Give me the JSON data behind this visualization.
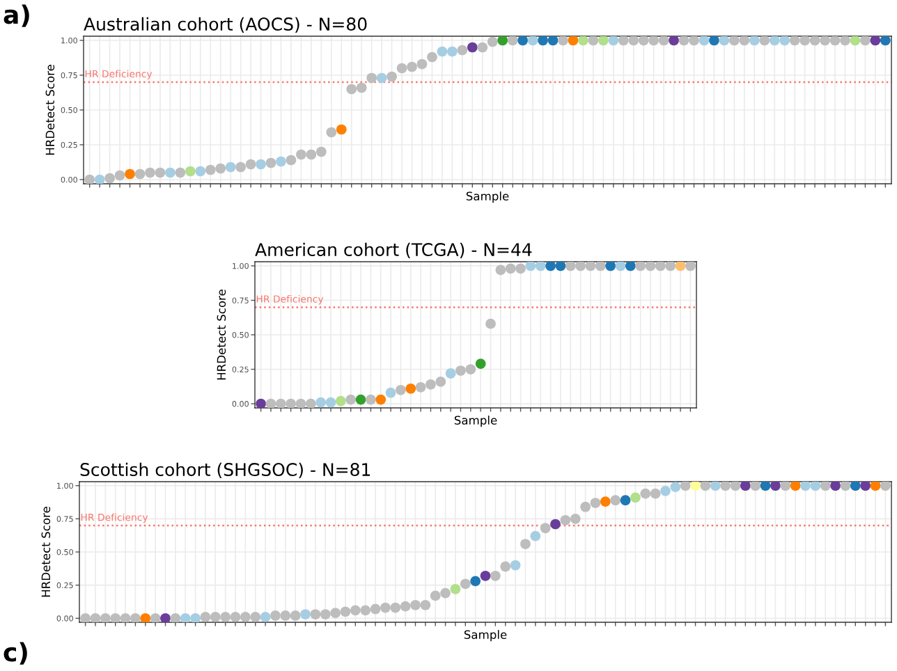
{
  "chart_data": [
    {
      "type": "scatter",
      "title": "Australian cohort (AOCS) - N=80",
      "xlabel": "Sample",
      "ylabel": "HRDetect Score",
      "annotations": [
        "a)"
      ],
      "marker": "circle",
      "grid": true,
      "categories": [
        null,
        null,
        null,
        null,
        null,
        null,
        null,
        null,
        null,
        null,
        null,
        null,
        null,
        null,
        null,
        null,
        null,
        null,
        null,
        null,
        null,
        null,
        null,
        null,
        null,
        null,
        null,
        null,
        null,
        null,
        null,
        null,
        null,
        null,
        null,
        null,
        null,
        null,
        null,
        null,
        null,
        null,
        null,
        null,
        null,
        null,
        null,
        null,
        null,
        null,
        null,
        null,
        null,
        null,
        null,
        null,
        null,
        null,
        null,
        null,
        null,
        null,
        null,
        null,
        null,
        null,
        null,
        null,
        null,
        null,
        null,
        null,
        null,
        null,
        null,
        null,
        null,
        null,
        null,
        null
      ],
      "values": [
        0.0,
        0.0,
        0.01,
        0.03,
        0.04,
        0.04,
        0.05,
        0.05,
        0.05,
        0.05,
        0.06,
        0.06,
        0.07,
        0.08,
        0.09,
        0.09,
        0.11,
        0.11,
        0.12,
        0.13,
        0.14,
        0.18,
        0.18,
        0.2,
        0.34,
        0.36,
        0.65,
        0.66,
        0.73,
        0.73,
        0.74,
        0.8,
        0.81,
        0.83,
        0.88,
        0.92,
        0.92,
        0.93,
        0.95,
        0.95,
        0.99,
        1.0,
        1.0,
        1.0,
        1.0,
        1.0,
        1.0,
        1.0,
        1.0,
        1.0,
        1.0,
        1.0,
        1.0,
        1.0,
        1.0,
        1.0,
        1.0,
        1.0,
        1.0,
        1.0,
        1.0,
        1.0,
        1.0,
        1.0,
        1.0,
        1.0,
        1.0,
        1.0,
        1.0,
        1.0,
        1.0,
        1.0,
        1.0,
        1.0,
        1.0,
        1.0,
        1.0,
        1.0,
        1.0,
        1.0
      ],
      "colors": [
        "#bdbdbd",
        "#a6cee3",
        "#bdbdbd",
        "#bdbdbd",
        "#ff7f00",
        "#bdbdbd",
        "#bdbdbd",
        "#bdbdbd",
        "#a6cee3",
        "#bdbdbd",
        "#b2df8a",
        "#a6cee3",
        "#bdbdbd",
        "#bdbdbd",
        "#a6cee3",
        "#bdbdbd",
        "#bdbdbd",
        "#a6cee3",
        "#bdbdbd",
        "#a6cee3",
        "#bdbdbd",
        "#bdbdbd",
        "#bdbdbd",
        "#bdbdbd",
        "#bdbdbd",
        "#ff7f00",
        "#bdbdbd",
        "#bdbdbd",
        "#bdbdbd",
        "#a6cee3",
        "#bdbdbd",
        "#bdbdbd",
        "#bdbdbd",
        "#bdbdbd",
        "#bdbdbd",
        "#a6cee3",
        "#a6cee3",
        "#bdbdbd",
        "#6a3d9a",
        "#bdbdbd",
        "#bdbdbd",
        "#33a02c",
        "#bdbdbd",
        "#1f78b4",
        "#a6cee3",
        "#1f78b4",
        "#1f78b4",
        "#bdbdbd",
        "#ff7f00",
        "#b2df8a",
        "#bdbdbd",
        "#b2df8a",
        "#a6cee3",
        "#bdbdbd",
        "#bdbdbd",
        "#bdbdbd",
        "#bdbdbd",
        "#bdbdbd",
        "#6a3d9a",
        "#bdbdbd",
        "#bdbdbd",
        "#a6cee3",
        "#1f78b4",
        "#a6cee3",
        "#bdbdbd",
        "#bdbdbd",
        "#a6cee3",
        "#bdbdbd",
        "#a6cee3",
        "#a6cee3",
        "#bdbdbd",
        "#bdbdbd",
        "#bdbdbd",
        "#bdbdbd",
        "#bdbdbd",
        "#bdbdbd",
        "#b2df8a",
        "#bdbdbd",
        "#6a3d9a",
        "#1f78b4"
      ],
      "ylim": [
        -0.03,
        1.03
      ],
      "yticks": [
        {
          "value": 0,
          "label": "0.00"
        },
        {
          "value": 0.25,
          "label": "0.25"
        },
        {
          "value": 0.5,
          "label": "0.50"
        },
        {
          "value": 0.75,
          "label": "0.75"
        },
        {
          "value": 1,
          "label": "1.00"
        }
      ],
      "ref_lines": [
        {
          "axis": "y",
          "value": 0.7,
          "label": "HR Deficiency",
          "color": "#f8766d",
          "line_style": "dotted"
        }
      ]
    },
    {
      "type": "scatter",
      "title": "American cohort (TCGA) - N=44",
      "xlabel": "Sample",
      "ylabel": "HRDetect Score",
      "marker": "circle",
      "grid": true,
      "categories": [
        null,
        null,
        null,
        null,
        null,
        null,
        null,
        null,
        null,
        null,
        null,
        null,
        null,
        null,
        null,
        null,
        null,
        null,
        null,
        null,
        null,
        null,
        null,
        null,
        null,
        null,
        null,
        null,
        null,
        null,
        null,
        null,
        null,
        null,
        null,
        null,
        null,
        null,
        null,
        null,
        null,
        null,
        null,
        null
      ],
      "values": [
        0.0,
        0.0,
        0.0,
        0.0,
        0.0,
        0.0,
        0.01,
        0.01,
        0.02,
        0.03,
        0.03,
        0.03,
        0.03,
        0.08,
        0.1,
        0.11,
        0.12,
        0.14,
        0.16,
        0.22,
        0.24,
        0.25,
        0.29,
        0.58,
        0.97,
        0.98,
        0.98,
        1.0,
        1.0,
        1.0,
        1.0,
        1.0,
        1.0,
        1.0,
        1.0,
        1.0,
        1.0,
        1.0,
        1.0,
        1.0,
        1.0,
        1.0,
        1.0,
        1.0
      ],
      "colors": [
        "#6a3d9a",
        "#bdbdbd",
        "#bdbdbd",
        "#bdbdbd",
        "#bdbdbd",
        "#bdbdbd",
        "#a6cee3",
        "#a6cee3",
        "#b2df8a",
        "#bdbdbd",
        "#33a02c",
        "#bdbdbd",
        "#ff7f00",
        "#a6cee3",
        "#bdbdbd",
        "#ff7f00",
        "#bdbdbd",
        "#bdbdbd",
        "#bdbdbd",
        "#a6cee3",
        "#bdbdbd",
        "#bdbdbd",
        "#33a02c",
        "#bdbdbd",
        "#bdbdbd",
        "#bdbdbd",
        "#bdbdbd",
        "#a6cee3",
        "#a6cee3",
        "#1f78b4",
        "#1f78b4",
        "#bdbdbd",
        "#bdbdbd",
        "#bdbdbd",
        "#bdbdbd",
        "#1f78b4",
        "#a6cee3",
        "#1f78b4",
        "#bdbdbd",
        "#bdbdbd",
        "#bdbdbd",
        "#bdbdbd",
        "#fdbf6f",
        "#bdbdbd"
      ],
      "ylim": [
        -0.03,
        1.03
      ],
      "yticks": [
        {
          "value": 0,
          "label": "0.00"
        },
        {
          "value": 0.25,
          "label": "0.25"
        },
        {
          "value": 0.5,
          "label": "0.50"
        },
        {
          "value": 0.75,
          "label": "0.75"
        },
        {
          "value": 1,
          "label": "1.00"
        }
      ],
      "ref_lines": [
        {
          "axis": "y",
          "value": 0.7,
          "label": "HR Deficiency",
          "color": "#f8766d",
          "line_style": "dotted"
        }
      ]
    },
    {
      "type": "scatter",
      "title": "Scottish cohort (SHGSOC) - N=81",
      "xlabel": "Sample",
      "ylabel": "HRDetect Score",
      "annotations": [
        "c)"
      ],
      "marker": "circle",
      "grid": true,
      "categories": [
        null,
        null,
        null,
        null,
        null,
        null,
        null,
        null,
        null,
        null,
        null,
        null,
        null,
        null,
        null,
        null,
        null,
        null,
        null,
        null,
        null,
        null,
        null,
        null,
        null,
        null,
        null,
        null,
        null,
        null,
        null,
        null,
        null,
        null,
        null,
        null,
        null,
        null,
        null,
        null,
        null,
        null,
        null,
        null,
        null,
        null,
        null,
        null,
        null,
        null,
        null,
        null,
        null,
        null,
        null,
        null,
        null,
        null,
        null,
        null,
        null,
        null,
        null,
        null,
        null,
        null,
        null,
        null,
        null,
        null,
        null,
        null,
        null,
        null,
        null,
        null,
        null,
        null,
        null,
        null,
        null
      ],
      "values": [
        0,
        0,
        0,
        0,
        0,
        0,
        0,
        0,
        0,
        0,
        0,
        0,
        0.01,
        0.01,
        0.01,
        0.01,
        0.01,
        0.01,
        0.01,
        0.02,
        0.02,
        0.02,
        0.03,
        0.03,
        0.03,
        0.04,
        0.05,
        0.06,
        0.06,
        0.07,
        0.08,
        0.08,
        0.09,
        0.1,
        0.1,
        0.17,
        0.19,
        0.22,
        0.26,
        0.28,
        0.32,
        0.32,
        0.39,
        0.4,
        0.56,
        0.62,
        0.68,
        0.71,
        0.74,
        0.75,
        0.84,
        0.87,
        0.88,
        0.89,
        0.89,
        0.91,
        0.94,
        0.94,
        0.96,
        0.99,
        1.0,
        1.0,
        1.0,
        1.0,
        1.0,
        1.0,
        1.0,
        1.0,
        1.0,
        1.0,
        1.0,
        1.0,
        1.0,
        1.0,
        1.0,
        1.0,
        1.0,
        1.0,
        1.0,
        1.0,
        1.0
      ],
      "colors": [
        "#bdbdbd",
        "#bdbdbd",
        "#bdbdbd",
        "#bdbdbd",
        "#bdbdbd",
        "#bdbdbd",
        "#ff7f00",
        "#bdbdbd",
        "#6a3d9a",
        "#bdbdbd",
        "#a6cee3",
        "#a6cee3",
        "#bdbdbd",
        "#bdbdbd",
        "#bdbdbd",
        "#bdbdbd",
        "#bdbdbd",
        "#bdbdbd",
        "#a6cee3",
        "#bdbdbd",
        "#bdbdbd",
        "#bdbdbd",
        "#a6cee3",
        "#bdbdbd",
        "#bdbdbd",
        "#bdbdbd",
        "#bdbdbd",
        "#bdbdbd",
        "#bdbdbd",
        "#bdbdbd",
        "#bdbdbd",
        "#bdbdbd",
        "#bdbdbd",
        "#bdbdbd",
        "#bdbdbd",
        "#bdbdbd",
        "#bdbdbd",
        "#b2df8a",
        "#bdbdbd",
        "#1f78b4",
        "#6a3d9a",
        "#bdbdbd",
        "#bdbdbd",
        "#a6cee3",
        "#bdbdbd",
        "#a6cee3",
        "#bdbdbd",
        "#6a3d9a",
        "#bdbdbd",
        "#bdbdbd",
        "#bdbdbd",
        "#bdbdbd",
        "#ff7f00",
        "#bdbdbd",
        "#1f78b4",
        "#b2df8a",
        "#bdbdbd",
        "#bdbdbd",
        "#a6cee3",
        "#a6cee3",
        "#bdbdbd",
        "#ffff99",
        "#bdbdbd",
        "#a6cee3",
        "#bdbdbd",
        "#bdbdbd",
        "#6a3d9a",
        "#bdbdbd",
        "#1f78b4",
        "#6a3d9a",
        "#bdbdbd",
        "#ff7f00",
        "#a6cee3",
        "#a6cee3",
        "#bdbdbd",
        "#6a3d9a",
        "#bdbdbd",
        "#1f78b4",
        "#6a3d9a",
        "#ff7f00",
        "#bdbdbd"
      ],
      "ylim": [
        -0.03,
        1.03
      ],
      "yticks": [
        {
          "value": 0,
          "label": "0.00"
        },
        {
          "value": 0.25,
          "label": "0.25"
        },
        {
          "value": 0.5,
          "label": "0.50"
        },
        {
          "value": 0.75,
          "label": "0.75"
        },
        {
          "value": 1,
          "label": "1.00"
        }
      ],
      "ref_lines": [
        {
          "axis": "y",
          "value": 0.7,
          "label": "HR Deficiency",
          "color": "#f8766d",
          "line_style": "dotted"
        }
      ]
    }
  ]
}
